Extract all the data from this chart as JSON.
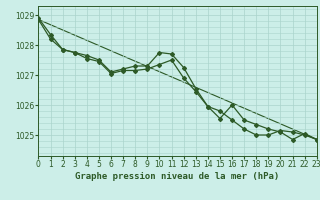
{
  "title": "Graphe pression niveau de la mer (hPa)",
  "background_color": "#cceee8",
  "grid_color": "#aad4cc",
  "line_color": "#2d5a27",
  "x_min": 0,
  "x_max": 23,
  "y_min": 1024.3,
  "y_max": 1029.3,
  "y_ticks": [
    1025,
    1026,
    1027,
    1028,
    1029
  ],
  "x_ticks": [
    0,
    1,
    2,
    3,
    4,
    5,
    6,
    7,
    8,
    9,
    10,
    11,
    12,
    13,
    14,
    15,
    16,
    17,
    18,
    19,
    20,
    21,
    22,
    23
  ],
  "series1_x": [
    0,
    1,
    2,
    3,
    4,
    5,
    6,
    7,
    8,
    9,
    10,
    11,
    12,
    13,
    14,
    15,
    16,
    17,
    18,
    19,
    20,
    21,
    22,
    23
  ],
  "series1_y": [
    1028.85,
    1028.2,
    1027.85,
    1027.75,
    1027.65,
    1027.5,
    1027.1,
    1027.2,
    1027.3,
    1027.3,
    1027.75,
    1027.7,
    1027.25,
    1026.55,
    1025.95,
    1025.55,
    1026.0,
    1025.5,
    1025.35,
    1025.2,
    1025.1,
    1024.85,
    1025.05,
    1024.85
  ],
  "series2_x": [
    0,
    1,
    2,
    3,
    4,
    5,
    6,
    7,
    8,
    9,
    10,
    11,
    12,
    13,
    14,
    15,
    16,
    17,
    18,
    19,
    20,
    21,
    22,
    23
  ],
  "series2_y": [
    1028.9,
    1028.35,
    1027.85,
    1027.75,
    1027.55,
    1027.45,
    1027.05,
    1027.15,
    1027.15,
    1027.2,
    1027.35,
    1027.5,
    1026.9,
    1026.45,
    1025.95,
    1025.8,
    1025.5,
    1025.2,
    1025.0,
    1025.0,
    1025.15,
    1025.1,
    1025.0,
    1024.85
  ],
  "trend_x": [
    0,
    23
  ],
  "trend_y": [
    1028.85,
    1024.85
  ],
  "tick_fontsize": 5.5,
  "label_fontsize": 6.5,
  "line_width": 0.9,
  "marker_size": 2.0
}
